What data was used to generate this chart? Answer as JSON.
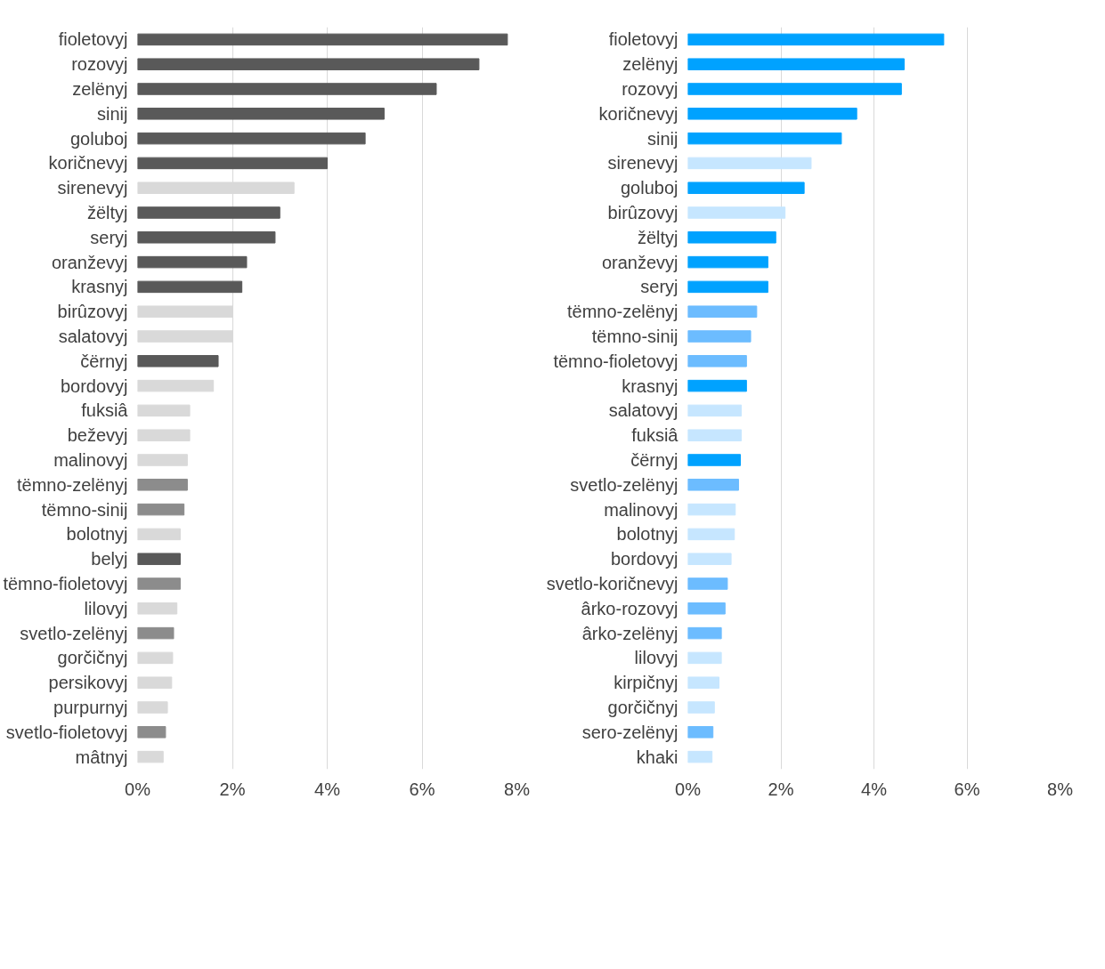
{
  "chart_data": [
    {
      "type": "bar",
      "orientation": "horizontal",
      "grid": "x",
      "xlim": [
        0,
        8
      ],
      "xticks": [
        {
          "value": 0,
          "label": "0%"
        },
        {
          "value": 2,
          "label": "2%"
        },
        {
          "value": 4,
          "label": "4%"
        },
        {
          "value": 6,
          "label": "6%"
        },
        {
          "value": 8,
          "label": "8%"
        }
      ],
      "categories": [
        "fioletovyj",
        "rozovyj",
        "zelënyj",
        "sinij",
        "goluboj",
        "koričnevyj",
        "sirenevyj",
        "žëltyj",
        "seryj",
        "oranževyj",
        "krasnyj",
        "birûzovyj",
        "salatovyj",
        "čërnyj",
        "bordovyj",
        "fuksiâ",
        "beževyj",
        "malinovyj",
        "tëmno-zelënyj",
        "tëmno-sinij",
        "bolotnyj",
        "belyj",
        "tëmno-fioletovyj",
        "lilovyj",
        "svetlo-zelënyj",
        "gorčičnyj",
        "persikovyj",
        "purpurnyj",
        "svetlo-fioletovyj",
        "mâtnyj"
      ],
      "values": [
        7.8,
        7.2,
        6.3,
        5.2,
        4.8,
        4.0,
        3.3,
        3.0,
        2.9,
        2.3,
        2.2,
        2.0,
        2.0,
        1.7,
        1.6,
        1.1,
        1.1,
        1.05,
        1.05,
        0.98,
        0.9,
        0.9,
        0.9,
        0.83,
        0.76,
        0.74,
        0.72,
        0.63,
        0.59,
        0.54
      ],
      "colors": [
        "#595959",
        "#595959",
        "#595959",
        "#595959",
        "#595959",
        "#595959",
        "#d9d9d9",
        "#595959",
        "#595959",
        "#595959",
        "#595959",
        "#d9d9d9",
        "#d9d9d9",
        "#595959",
        "#d9d9d9",
        "#d9d9d9",
        "#d9d9d9",
        "#d9d9d9",
        "#8c8c8c",
        "#8c8c8c",
        "#d9d9d9",
        "#595959",
        "#8c8c8c",
        "#d9d9d9",
        "#8c8c8c",
        "#d9d9d9",
        "#d9d9d9",
        "#d9d9d9",
        "#8c8c8c",
        "#d9d9d9"
      ]
    },
    {
      "type": "bar",
      "orientation": "horizontal",
      "grid": "x",
      "xlim": [
        0,
        8
      ],
      "xticks": [
        {
          "value": 0,
          "label": "0%"
        },
        {
          "value": 2,
          "label": "2%"
        },
        {
          "value": 4,
          "label": "4%"
        },
        {
          "value": 6,
          "label": "6%"
        },
        {
          "value": 8,
          "label": "8%"
        }
      ],
      "categories": [
        "fioletovyj",
        "zelënyj",
        "rozovyj",
        "koričnevyj",
        "sinij",
        "sirenevyj",
        "goluboj",
        "birûzovyj",
        "žëltyj",
        "oranževyj",
        "seryj",
        "tëmno-zelënyj",
        "tëmno-sinij",
        "tëmno-fioletovyj",
        "krasnyj",
        "salatovyj",
        "fuksiâ",
        "čërnyj",
        "svetlo-zelënyj",
        "malinovyj",
        "bolotnyj",
        "bordovyj",
        "svetlo-koričnevyj",
        "ârko-rozovyj",
        "ârko-zelënyj",
        "lilovyj",
        "kirpičnyj",
        "gorčičnyj",
        "sero-zelënyj",
        "khaki"
      ],
      "values": [
        5.5,
        4.65,
        4.59,
        3.63,
        3.3,
        2.65,
        2.5,
        2.09,
        1.89,
        1.72,
        1.72,
        1.48,
        1.35,
        1.26,
        1.26,
        1.15,
        1.15,
        1.13,
        1.09,
        1.02,
        1.0,
        0.93,
        0.85,
        0.8,
        0.72,
        0.72,
        0.67,
        0.57,
        0.54,
        0.52
      ],
      "colors": [
        "#00a2ff",
        "#00a2ff",
        "#00a2ff",
        "#00a2ff",
        "#00a2ff",
        "#c6e6ff",
        "#00a2ff",
        "#c6e6ff",
        "#00a2ff",
        "#00a2ff",
        "#00a2ff",
        "#6cbcff",
        "#6cbcff",
        "#6cbcff",
        "#00a2ff",
        "#c6e6ff",
        "#c6e6ff",
        "#00a2ff",
        "#6cbcff",
        "#c6e6ff",
        "#c6e6ff",
        "#c6e6ff",
        "#6cbcff",
        "#6cbcff",
        "#6cbcff",
        "#c6e6ff",
        "#c6e6ff",
        "#c6e6ff",
        "#6cbcff",
        "#c6e6ff"
      ]
    }
  ]
}
